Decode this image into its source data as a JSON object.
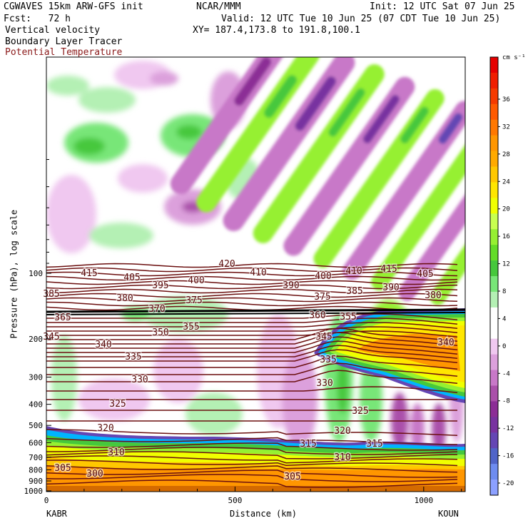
{
  "header": {
    "model_line": "CGWAVES 15km ARW-GFS init",
    "org": "NCAR/MMM",
    "init": "Init: 12 UTC Sat 07 Jun 25",
    "fcst": "Fcst:   72 h",
    "valid": "Valid: 12 UTC Tue 10 Jun 25 (07 CDT Tue 10 Jun 25)",
    "field1": "Vertical velocity",
    "xy": "XY= 187.4,173.8 to 191.8,100.1",
    "field2": "Boundary Layer Tracer",
    "field3": "Potential Temperature",
    "field3_color": "#8b1a1a"
  },
  "axes": {
    "ylabel": "Pressure (hPa), log scale",
    "xlabel": "Distance (km)",
    "left_station": "KABR",
    "right_station": "KOUN"
  },
  "chart_data": {
    "type": "heatmap",
    "title": "",
    "x_ticks": [
      0,
      500,
      1000
    ],
    "x_range": [
      0,
      1110
    ],
    "y_ticks": [
      100,
      200,
      300,
      400,
      500,
      600,
      700,
      800,
      900,
      1000
    ],
    "y_log_scale": true,
    "colorbar": {
      "units": "cm s⁻¹",
      "labels": [
        "36",
        "32",
        "28",
        "24",
        "20",
        "16",
        "12",
        "8",
        "4",
        "0",
        "-4",
        "-8",
        "-12",
        "-16",
        "-20"
      ],
      "colors": [
        "#e60000",
        "#f01e00",
        "#f53a00",
        "#ff5a00",
        "#ff7800",
        "#ff9600",
        "#ffaa00",
        "#ffc800",
        "#ffe600",
        "#f0ff00",
        "#c8ff50",
        "#96f032",
        "#64dc28",
        "#46c83c",
        "#78e678",
        "#b4f0b4",
        "#ffffff",
        "#ffffff",
        "#f0c8f0",
        "#dca0dc",
        "#c878c8",
        "#aa50aa",
        "#8c2d96",
        "#7832a0",
        "#6446b4",
        "#5064c8",
        "#6e8cf0",
        "#8ca0ff"
      ]
    },
    "isentrope_labels": [
      {
        "label": "415",
        "x": 125,
        "y": 383
      },
      {
        "label": "405",
        "x": 185,
        "y": 389
      },
      {
        "label": "400",
        "x": 275,
        "y": 393
      },
      {
        "label": "395",
        "x": 225,
        "y": 400
      },
      {
        "label": "385",
        "x": 72,
        "y": 412
      },
      {
        "label": "380",
        "x": 175,
        "y": 418
      },
      {
        "label": "375",
        "x": 272,
        "y": 421
      },
      {
        "label": "370",
        "x": 220,
        "y": 433
      },
      {
        "label": "365",
        "x": 88,
        "y": 445
      },
      {
        "label": "420",
        "x": 318,
        "y": 370
      },
      {
        "label": "410",
        "x": 362,
        "y": 382
      },
      {
        "label": "390",
        "x": 408,
        "y": 400
      },
      {
        "label": "400",
        "x": 453,
        "y": 387
      },
      {
        "label": "410",
        "x": 496,
        "y": 380
      },
      {
        "label": "415",
        "x": 545,
        "y": 377
      },
      {
        "label": "405",
        "x": 596,
        "y": 384
      },
      {
        "label": "375",
        "x": 452,
        "y": 416
      },
      {
        "label": "385",
        "x": 497,
        "y": 408
      },
      {
        "label": "390",
        "x": 548,
        "y": 403
      },
      {
        "label": "380",
        "x": 607,
        "y": 414
      },
      {
        "label": "360",
        "x": 445,
        "y": 442
      },
      {
        "label": "355",
        "x": 488,
        "y": 444
      },
      {
        "label": "345",
        "x": 72,
        "y": 472
      },
      {
        "label": "355",
        "x": 268,
        "y": 458
      },
      {
        "label": "350",
        "x": 225,
        "y": 466
      },
      {
        "label": "340",
        "x": 145,
        "y": 483
      },
      {
        "label": "335",
        "x": 187,
        "y": 500
      },
      {
        "label": "345",
        "x": 454,
        "y": 472
      },
      {
        "label": "335",
        "x": 460,
        "y": 504
      },
      {
        "label": "340",
        "x": 625,
        "y": 480
      },
      {
        "label": "330",
        "x": 196,
        "y": 532
      },
      {
        "label": "330",
        "x": 455,
        "y": 537
      },
      {
        "label": "325",
        "x": 165,
        "y": 566
      },
      {
        "label": "325",
        "x": 505,
        "y": 576
      },
      {
        "label": "320",
        "x": 148,
        "y": 600
      },
      {
        "label": "320",
        "x": 480,
        "y": 604
      },
      {
        "label": "315",
        "x": 432,
        "y": 622
      },
      {
        "label": "315",
        "x": 525,
        "y": 622
      },
      {
        "label": "310",
        "x": 163,
        "y": 634
      },
      {
        "label": "310",
        "x": 480,
        "y": 641
      },
      {
        "label": "305",
        "x": 88,
        "y": 656
      },
      {
        "label": "300",
        "x": 133,
        "y": 664
      },
      {
        "label": "305",
        "x": 410,
        "y": 668
      }
    ]
  }
}
